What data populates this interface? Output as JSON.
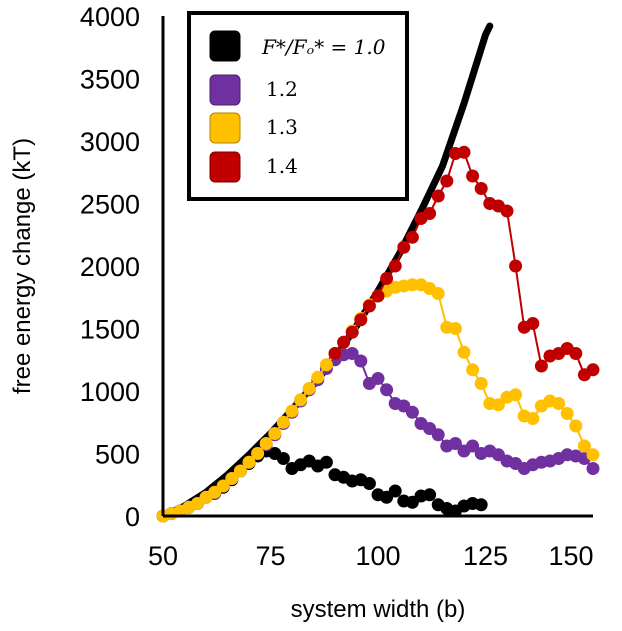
{
  "chart_data": {
    "type": "scatter",
    "xlabel": "system width (b)",
    "ylabel": "free energy change (kT)",
    "xlim": [
      50,
      150
    ],
    "ylim": [
      0,
      4000
    ],
    "xticks": [
      "50",
      "75",
      "100",
      "125",
      "150"
    ],
    "yticks": [
      "0",
      "500",
      "1000",
      "1500",
      "2000",
      "2500",
      "3000",
      "3500",
      "4000"
    ],
    "legend_position": "top-left",
    "legend_entries": [
      {
        "label": "F*/Fₒ* = 1.0",
        "color": "#000000"
      },
      {
        "label": "1.2",
        "color": "#7030a0"
      },
      {
        "label": "1.3",
        "color": "#ffc000"
      },
      {
        "label": "1.4",
        "color": "#c00000"
      }
    ],
    "theory_curve": {
      "color": "#000000",
      "x": [
        50,
        55,
        60,
        65,
        70,
        75,
        80,
        85,
        90,
        95,
        100,
        105,
        110,
        115,
        120,
        125,
        126
      ],
      "y": [
        0,
        80,
        190,
        330,
        490,
        660,
        850,
        1050,
        1270,
        1520,
        1800,
        2100,
        2440,
        2800,
        3300,
        3850,
        3920
      ]
    },
    "series": [
      {
        "color": "#000000",
        "markers": true,
        "lines": false,
        "points": [
          [
            50,
            0
          ],
          [
            52,
            20
          ],
          [
            54,
            40
          ],
          [
            56,
            70
          ],
          [
            58,
            100
          ],
          [
            60,
            150
          ],
          [
            62,
            180
          ],
          [
            64,
            230
          ],
          [
            66,
            290
          ],
          [
            68,
            360
          ],
          [
            70,
            420
          ],
          [
            72,
            480
          ],
          [
            74,
            520
          ],
          [
            76,
            500
          ],
          [
            78,
            460
          ],
          [
            80,
            380
          ],
          [
            82,
            410
          ],
          [
            84,
            440
          ],
          [
            86,
            400
          ],
          [
            88,
            430
          ],
          [
            90,
            330
          ],
          [
            92,
            310
          ],
          [
            94,
            280
          ],
          [
            96,
            290
          ],
          [
            98,
            260
          ],
          [
            100,
            170
          ],
          [
            102,
            150
          ],
          [
            104,
            200
          ],
          [
            106,
            120
          ],
          [
            108,
            110
          ],
          [
            110,
            160
          ],
          [
            112,
            170
          ],
          [
            114,
            90
          ],
          [
            116,
            60
          ],
          [
            118,
            40
          ],
          [
            120,
            80
          ],
          [
            122,
            100
          ],
          [
            124,
            90
          ]
        ]
      },
      {
        "color": "#7030a0",
        "markers": true,
        "lines": true,
        "points": [
          [
            50,
            0
          ],
          [
            52,
            20
          ],
          [
            54,
            40
          ],
          [
            56,
            70
          ],
          [
            58,
            100
          ],
          [
            60,
            150
          ],
          [
            62,
            180
          ],
          [
            64,
            240
          ],
          [
            66,
            300
          ],
          [
            68,
            360
          ],
          [
            70,
            430
          ],
          [
            72,
            500
          ],
          [
            74,
            570
          ],
          [
            76,
            650
          ],
          [
            78,
            740
          ],
          [
            80,
            830
          ],
          [
            82,
            920
          ],
          [
            84,
            1010
          ],
          [
            86,
            1090
          ],
          [
            88,
            1180
          ],
          [
            90,
            1250
          ],
          [
            92,
            1290
          ],
          [
            94,
            1300
          ],
          [
            96,
            1240
          ],
          [
            98,
            1060
          ],
          [
            100,
            1100
          ],
          [
            102,
            1010
          ],
          [
            104,
            900
          ],
          [
            106,
            880
          ],
          [
            108,
            830
          ],
          [
            110,
            740
          ],
          [
            112,
            700
          ],
          [
            114,
            650
          ],
          [
            116,
            560
          ],
          [
            118,
            580
          ],
          [
            120,
            520
          ],
          [
            122,
            560
          ],
          [
            124,
            500
          ],
          [
            126,
            520
          ],
          [
            128,
            490
          ],
          [
            130,
            440
          ],
          [
            132,
            420
          ],
          [
            134,
            380
          ],
          [
            136,
            410
          ],
          [
            138,
            430
          ],
          [
            140,
            440
          ],
          [
            142,
            460
          ],
          [
            144,
            490
          ],
          [
            146,
            480
          ],
          [
            148,
            460
          ],
          [
            150,
            380
          ]
        ]
      },
      {
        "color": "#ffc000",
        "markers": true,
        "lines": true,
        "points": [
          [
            50,
            0
          ],
          [
            52,
            20
          ],
          [
            54,
            40
          ],
          [
            56,
            70
          ],
          [
            58,
            100
          ],
          [
            60,
            150
          ],
          [
            62,
            190
          ],
          [
            64,
            240
          ],
          [
            66,
            300
          ],
          [
            68,
            360
          ],
          [
            70,
            430
          ],
          [
            72,
            500
          ],
          [
            74,
            580
          ],
          [
            76,
            660
          ],
          [
            78,
            750
          ],
          [
            80,
            840
          ],
          [
            82,
            930
          ],
          [
            84,
            1020
          ],
          [
            86,
            1110
          ],
          [
            88,
            1210
          ],
          [
            90,
            1300
          ],
          [
            92,
            1390
          ],
          [
            94,
            1480
          ],
          [
            96,
            1580
          ],
          [
            98,
            1690
          ],
          [
            100,
            1760
          ],
          [
            102,
            1800
          ],
          [
            104,
            1830
          ],
          [
            106,
            1840
          ],
          [
            108,
            1850
          ],
          [
            110,
            1850
          ],
          [
            112,
            1820
          ],
          [
            114,
            1780
          ],
          [
            116,
            1510
          ],
          [
            118,
            1500
          ],
          [
            120,
            1310
          ],
          [
            122,
            1170
          ],
          [
            124,
            1060
          ],
          [
            126,
            900
          ],
          [
            128,
            890
          ],
          [
            130,
            950
          ],
          [
            132,
            970
          ],
          [
            134,
            800
          ],
          [
            136,
            780
          ],
          [
            138,
            880
          ],
          [
            140,
            920
          ],
          [
            142,
            900
          ],
          [
            144,
            820
          ],
          [
            146,
            720
          ],
          [
            148,
            560
          ],
          [
            150,
            490
          ]
        ]
      },
      {
        "color": "#c00000",
        "markers": true,
        "lines": true,
        "points": [
          [
            90,
            1300
          ],
          [
            92,
            1390
          ],
          [
            94,
            1470
          ],
          [
            96,
            1570
          ],
          [
            98,
            1680
          ],
          [
            100,
            1760
          ],
          [
            102,
            1900
          ],
          [
            104,
            2000
          ],
          [
            106,
            2150
          ],
          [
            108,
            2230
          ],
          [
            110,
            2380
          ],
          [
            112,
            2420
          ],
          [
            114,
            2560
          ],
          [
            116,
            2680
          ],
          [
            118,
            2900
          ],
          [
            120,
            2910
          ],
          [
            122,
            2720
          ],
          [
            124,
            2620
          ],
          [
            126,
            2500
          ],
          [
            128,
            2480
          ],
          [
            130,
            2440
          ],
          [
            132,
            2000
          ],
          [
            134,
            1510
          ],
          [
            136,
            1540
          ],
          [
            138,
            1200
          ],
          [
            140,
            1280
          ],
          [
            142,
            1300
          ],
          [
            144,
            1340
          ],
          [
            146,
            1300
          ],
          [
            148,
            1130
          ],
          [
            150,
            1170
          ]
        ]
      }
    ]
  }
}
